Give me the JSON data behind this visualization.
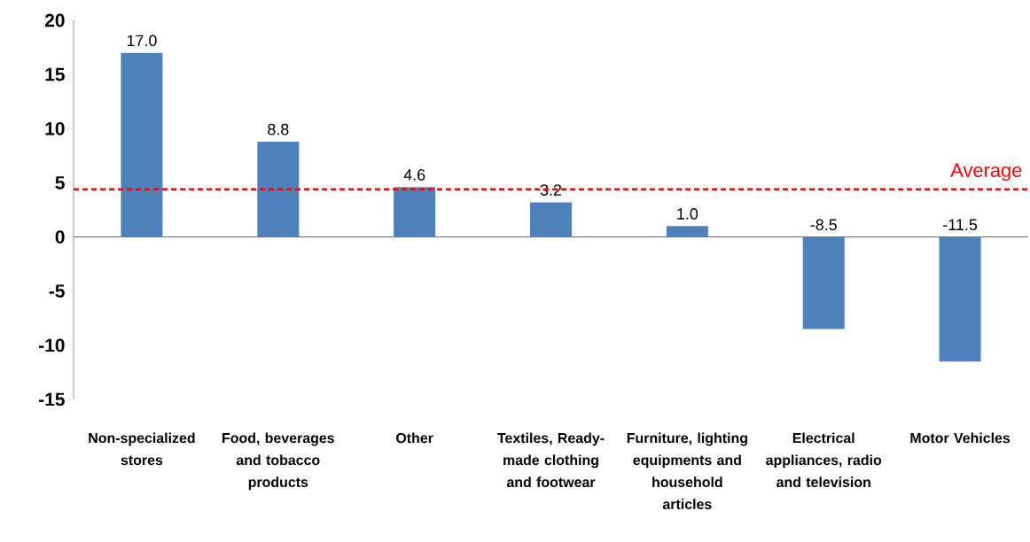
{
  "chart_data": {
    "type": "bar",
    "categories": [
      "Non-specialized stores",
      "Food, beverages and tobacco products",
      "Other",
      "Textiles, Ready-made clothing and footwear",
      "Furniture, lighting equipments and household articles",
      "Electrical appliances, radio and television",
      "Motor Vehicles"
    ],
    "values": [
      17.0,
      8.8,
      4.6,
      3.2,
      1.0,
      -8.5,
      -11.5
    ],
    "color": "#4f81bd",
    "ylim": [
      -15,
      20
    ],
    "yticks": [
      -15,
      -10,
      -5,
      0,
      5,
      10,
      15,
      20
    ],
    "value_labels": [
      "17.0",
      "8.8",
      "4.6",
      "3.2",
      "1.0",
      "-8.5",
      "-11.5"
    ],
    "ref_lines": [
      {
        "axis": "y",
        "value": 4.4,
        "label": "Average",
        "color": "#ff0000",
        "line_style": "dashed"
      }
    ]
  }
}
